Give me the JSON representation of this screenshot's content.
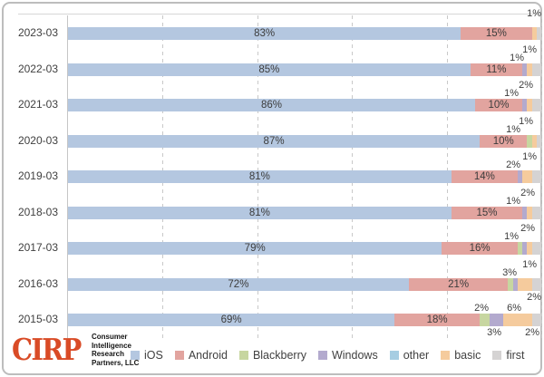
{
  "chart_data": {
    "type": "bar",
    "orientation": "horizontal",
    "stacked": true,
    "title": "",
    "xlabel": "",
    "ylabel": "",
    "xlim": [
      0,
      100
    ],
    "gridline_percents": [
      20,
      40,
      60,
      80,
      100
    ],
    "legend_position": "bottom",
    "categories": [
      "2023-03",
      "2022-03",
      "2021-03",
      "2020-03",
      "2019-03",
      "2018-03",
      "2017-03",
      "2016-03",
      "2015-03"
    ],
    "series": [
      {
        "name": "iOS",
        "color": "#b4c7e0",
        "values": [
          83,
          85,
          86,
          87,
          81,
          81,
          79,
          72,
          69
        ]
      },
      {
        "name": "Android",
        "color": "#e2a49f",
        "values": [
          15,
          11,
          10,
          10,
          14,
          15,
          16,
          21,
          18
        ]
      },
      {
        "name": "Blackberry",
        "color": "#c7d6a0",
        "values": [
          0,
          0,
          0,
          1,
          0,
          0,
          1,
          1,
          2
        ]
      },
      {
        "name": "Windows",
        "color": "#b3aace",
        "values": [
          0,
          1,
          1,
          0,
          1,
          1,
          1,
          1,
          3
        ]
      },
      {
        "name": "other",
        "color": "#a6cde2",
        "values": [
          0,
          0,
          0,
          0,
          0,
          0,
          0,
          0,
          0
        ]
      },
      {
        "name": "basic",
        "color": "#f5cb9d",
        "values": [
          1,
          1,
          1,
          1,
          2,
          1,
          1,
          3,
          6
        ]
      },
      {
        "name": "first",
        "color": "#d5d3d3",
        "values": [
          1,
          2,
          2,
          1,
          2,
          2,
          2,
          2,
          2
        ]
      }
    ],
    "in_bar_label_series": [
      "iOS",
      "Android"
    ],
    "in_bar_labels": [
      [
        "83%",
        "15%"
      ],
      [
        "85%",
        "11%"
      ],
      [
        "86%",
        "10%"
      ],
      [
        "87%",
        "10%"
      ],
      [
        "81%",
        "14%"
      ],
      [
        "81%",
        "15%"
      ],
      [
        "79%",
        "16%"
      ],
      [
        "72%",
        "21%"
      ],
      [
        "69%",
        "18%"
      ]
    ],
    "callouts": [
      [
        {
          "text": "1%",
          "pos": "hi",
          "right": 0
        }
      ],
      [
        {
          "text": "1%",
          "pos": "hi",
          "right": 5
        },
        {
          "text": "1%",
          "pos": "lo",
          "right": 19
        }
      ],
      [
        {
          "text": "2%",
          "pos": "hi",
          "right": 9
        },
        {
          "text": "1%",
          "pos": "lo",
          "right": 25
        }
      ],
      [
        {
          "text": "1%",
          "pos": "hi",
          "right": 9
        },
        {
          "text": "1%",
          "pos": "lo",
          "right": 23
        }
      ],
      [
        {
          "text": "1%",
          "pos": "hi",
          "right": 5
        },
        {
          "text": "2%",
          "pos": "lo",
          "right": 23
        }
      ],
      [
        {
          "text": "2%",
          "pos": "hi",
          "right": 7
        },
        {
          "text": "1%",
          "pos": "lo",
          "right": 23
        }
      ],
      [
        {
          "text": "2%",
          "pos": "hi",
          "right": 7
        },
        {
          "text": "1%",
          "pos": "lo",
          "right": 25
        }
      ],
      [
        {
          "text": "1%",
          "pos": "hi",
          "right": 5
        },
        {
          "text": "3%",
          "pos": "lo",
          "right": 27
        },
        {
          "text": "2%",
          "pos": "below",
          "right": 0
        }
      ],
      [
        {
          "text": "2%",
          "pos": "lo",
          "right": 58
        },
        {
          "text": "6%",
          "pos": "lo",
          "right": 22
        },
        {
          "text": "3%",
          "pos": "below",
          "right": 44
        },
        {
          "text": "2%",
          "pos": "below",
          "right": 2
        }
      ]
    ],
    "legend_labels": [
      "iOS",
      "Android",
      "Blackberry",
      "Windows",
      "other",
      "basic",
      "first"
    ]
  },
  "branding": {
    "logo_text": "CIRP",
    "org_name_lines": [
      "Consumer",
      "Intelligence",
      "Research",
      "Partners, LLC"
    ]
  },
  "colors": {
    "logo": "#d94b26",
    "text": "#3f3f3f",
    "grid": "#c9c9c9",
    "frame_border": "#bdbdbd"
  }
}
